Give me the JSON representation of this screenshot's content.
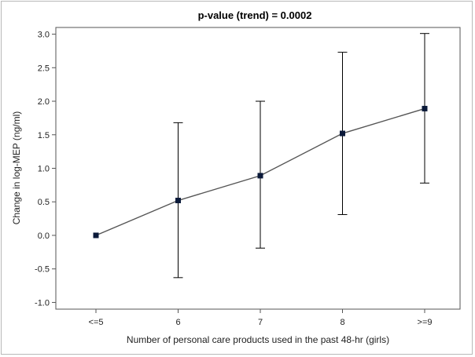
{
  "chart_data": {
    "type": "line",
    "title": "p-value (trend) = 0.0002",
    "xlabel": "Number of personal care products used in the past 48-hr (girls)",
    "ylabel": "Change in log-MEP (ng/ml)",
    "categories": [
      "<=5",
      "6",
      "7",
      "8",
      ">=9"
    ],
    "values": [
      0.0,
      0.52,
      0.89,
      1.52,
      1.89
    ],
    "error_low": [
      0.0,
      -0.63,
      -0.19,
      0.31,
      0.78
    ],
    "error_high": [
      0.0,
      1.68,
      2.0,
      2.73,
      3.01
    ],
    "ylim": [
      -1.1,
      3.1
    ],
    "yticks": [
      "-1.0",
      "-0.5",
      "0.0",
      "0.5",
      "1.0",
      "1.5",
      "2.0",
      "2.5",
      "3.0"
    ],
    "ytick_values": [
      -1.0,
      -0.5,
      0.0,
      0.5,
      1.0,
      1.5,
      2.0,
      2.5,
      3.0
    ],
    "grid": false,
    "colors": {
      "line": "#555555",
      "marker": "#0b1a3a",
      "error": "#000000",
      "axis": "#555555"
    }
  }
}
